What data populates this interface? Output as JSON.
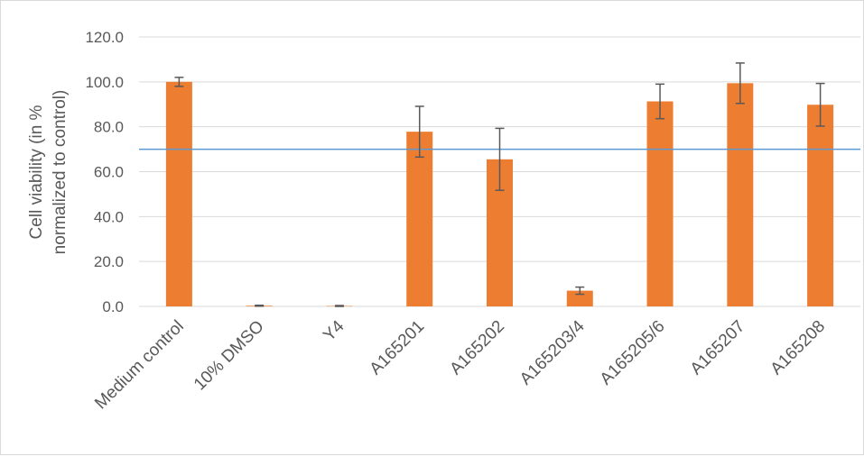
{
  "chart_data": {
    "type": "bar",
    "title": "",
    "xlabel": "",
    "ylabel_lines": [
      "Cell viability (in %",
      "normalized to control)"
    ],
    "categories": [
      "Medium control",
      "10% DMSO",
      "Y4",
      "A165201",
      "A165202",
      "A165203/4",
      "A165205/6",
      "A165207",
      "A165208"
    ],
    "series": [
      {
        "values": [
          100.0,
          0.3,
          0.2,
          77.8,
          65.5,
          7.0,
          91.3,
          99.4,
          89.8
        ],
        "error": [
          2.0,
          0.2,
          0.2,
          11.3,
          13.8,
          1.6,
          7.7,
          9.0,
          9.5
        ],
        "color": "#ED7D31"
      }
    ],
    "ylim": [
      0,
      120
    ],
    "yticks": [
      "0.0",
      "20.0",
      "40.0",
      "60.0",
      "80.0",
      "100.0",
      "120.0"
    ],
    "threshold_line": {
      "value": 70,
      "color": "#5B9BD5"
    },
    "grid": true,
    "grid_color": "#d9d9d9",
    "errorbar_color": "#595959",
    "legend": "none"
  }
}
